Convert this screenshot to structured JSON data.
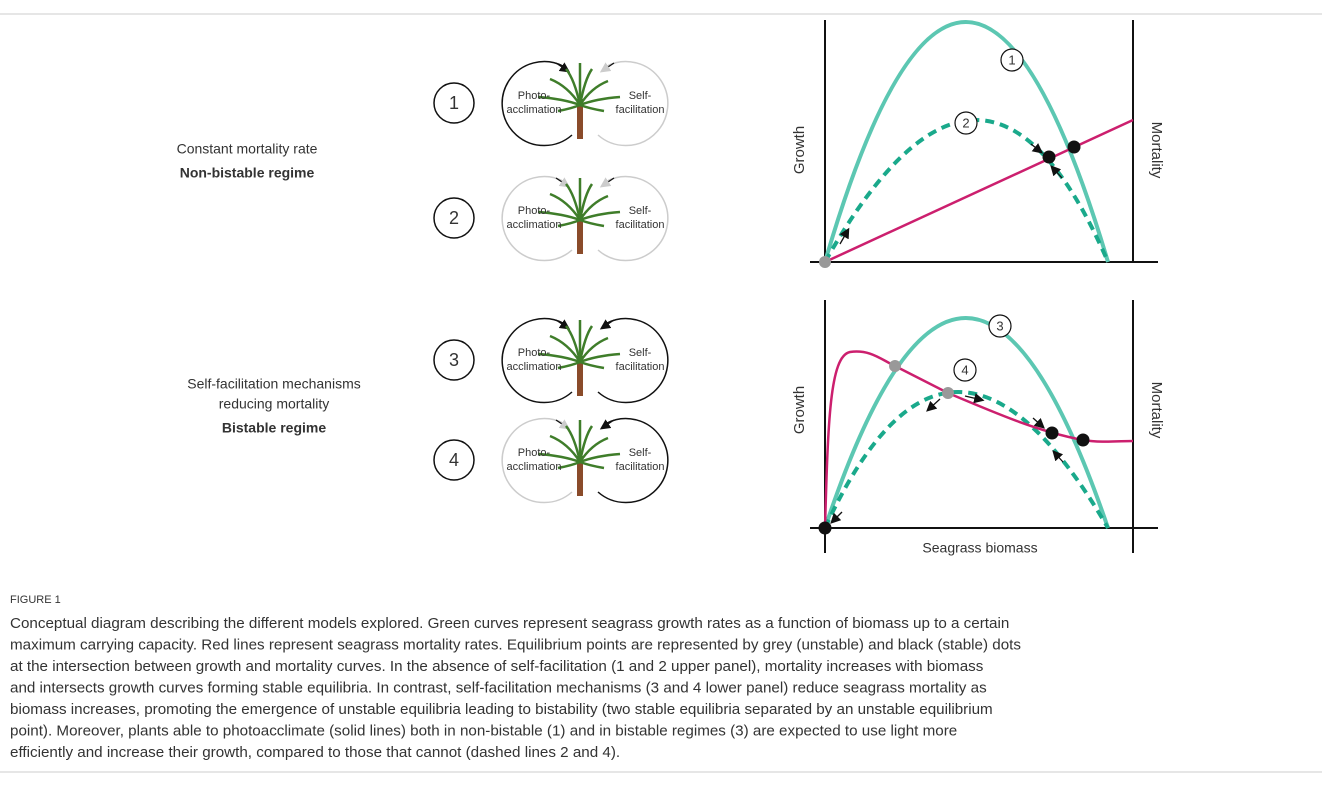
{
  "figure": {
    "rows": [
      {
        "number": "1",
        "photo": [
          "Photo-",
          "acclimation"
        ],
        "self": [
          "Self-",
          "facilitation"
        ]
      },
      {
        "number": "2",
        "photo": [
          "Photo-",
          "acclimation"
        ],
        "self": [
          "Self-",
          "facilitation"
        ]
      },
      {
        "number": "3",
        "photo": [
          "Photo-",
          "acclimation"
        ],
        "self": [
          "Self-",
          "facilitation"
        ]
      },
      {
        "number": "4",
        "photo": [
          "Photo-",
          "acclimation"
        ],
        "self": [
          "Self-",
          "facilitation"
        ]
      }
    ],
    "groups": [
      {
        "lines": [
          "Constant mortality rate"
        ],
        "regime": "Non-bistable regime"
      },
      {
        "lines": [
          "Self-facilitation mechanisms",
          "reducing mortality"
        ],
        "regime": "Bistable regime"
      }
    ],
    "panels": [
      {
        "y_label": "Growth",
        "y2_label": "Mortality",
        "curve_labels": [
          "1",
          "2"
        ]
      },
      {
        "y_label": "Growth",
        "y2_label": "Mortality",
        "curve_labels": [
          "3",
          "4"
        ]
      }
    ],
    "x_label": "Seagrass biomass"
  },
  "caption": {
    "label": "FIGURE 1",
    "lines": [
      "Conceptual diagram describing the different models explored. Green curves represent seagrass growth rates as a function of biomass up to a certain",
      "maximum carrying capacity. Red lines represent seagrass mortality rates. Equilibrium points are represented by grey (unstable) and black (stable) dots",
      "at the intersection between growth and mortality curves. In the absence of self-facilitation (1 and 2 upper panel), mortality increases with biomass",
      "and intersects growth curves forming stable equilibria. In contrast, self-facilitation mechanisms (3 and 4 lower panel) reduce seagrass mortality as",
      "biomass increases, promoting the emergence of unstable equilibria leading to bistability (two stable equilibria separated by an unstable equilibrium",
      "point). Moreover, plants able to photoacclimate (solid lines) both in non-bistable (1) and in bistable regimes (3) are expected to use light more",
      "efficiently and increase their growth, compared to those that cannot (dashed lines 2 and 4)."
    ]
  }
}
